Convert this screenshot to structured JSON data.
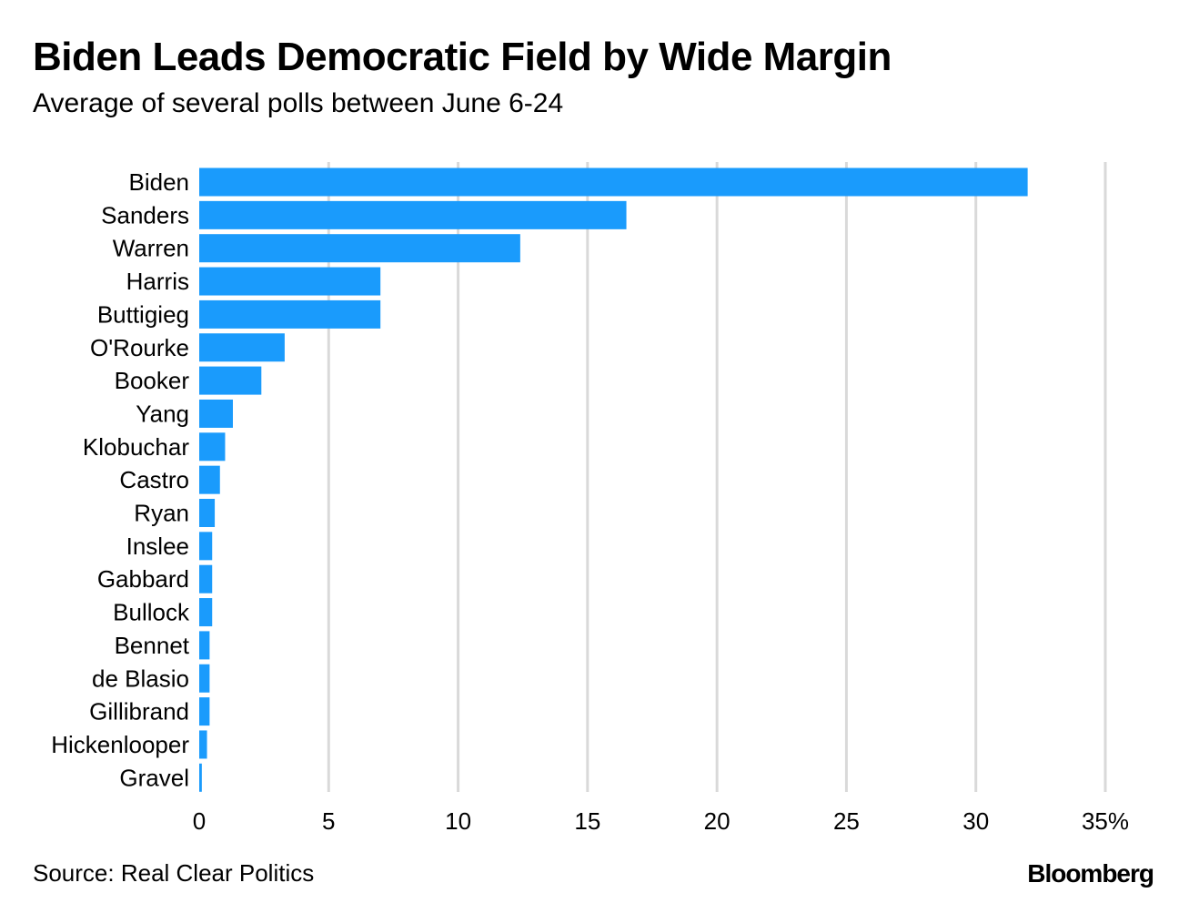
{
  "header": {
    "title": "Biden Leads Democratic Field by Wide Margin",
    "subtitle": "Average of several polls between June 6-24"
  },
  "footer": {
    "source": "Source: Real Clear Politics",
    "brand": "Bloomberg"
  },
  "colors": {
    "bar": "#1a9bfc",
    "grid": "#d9d9d9",
    "text": "#000000"
  },
  "chart_data": {
    "type": "bar",
    "orientation": "horizontal",
    "title": "Biden Leads Democratic Field by Wide Margin",
    "subtitle": "Average of several polls between June 6-24",
    "categories": [
      "Biden",
      "Sanders",
      "Warren",
      "Harris",
      "Buttigieg",
      "O'Rourke",
      "Booker",
      "Yang",
      "Klobuchar",
      "Castro",
      "Ryan",
      "Inslee",
      "Gabbard",
      "Bullock",
      "Bennet",
      "de Blasio",
      "Gillibrand",
      "Hickenlooper",
      "Gravel"
    ],
    "values": [
      32.0,
      16.5,
      12.4,
      7.0,
      7.0,
      3.3,
      2.4,
      1.3,
      1.0,
      0.8,
      0.6,
      0.5,
      0.5,
      0.5,
      0.4,
      0.4,
      0.4,
      0.3,
      0.1
    ],
    "xlim": [
      0,
      35
    ],
    "xticks": [
      "0",
      "5",
      "10",
      "15",
      "20",
      "25",
      "30",
      "35%"
    ],
    "xtick_values": [
      0,
      5,
      10,
      15,
      20,
      25,
      30,
      35
    ],
    "grid": true,
    "legend": "none"
  }
}
